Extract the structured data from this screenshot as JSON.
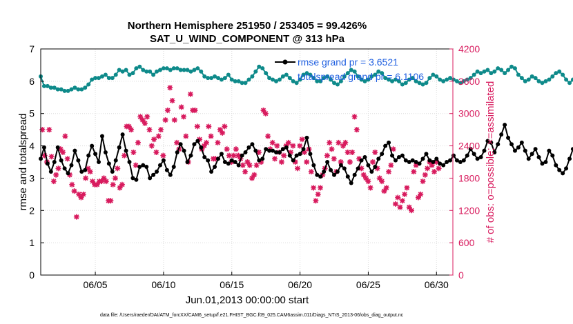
{
  "chart_data": {
    "type": "line",
    "title": "Northern Hemisphere 251950 / 253405 = 99.426%",
    "subtitle": "SAT_U_WIND_COMPONENT @ 313 hPa",
    "xlabel": "Jun.01,2013 00:00:00 start",
    "ylabel_left": "rmse and totalspread",
    "ylabel_right": "# of obs: o=possible; ×=assimilated",
    "footer": "data file: /Users/raeder/DAI/ATM_forcXX/CAM6_setup/f.e21.FHIST_BGC.f09_025.CAM6assim.011/Diags_NTrS_2013-06/obs_diag_output.nc",
    "xlim": [
      1,
      31.2
    ],
    "ylim_left": [
      0,
      7
    ],
    "ylim_right": [
      0,
      4200
    ],
    "xticks": [
      5,
      10,
      15,
      20,
      25,
      30
    ],
    "xtick_labels": [
      "06/05",
      "06/10",
      "06/15",
      "06/20",
      "06/25",
      "06/30"
    ],
    "yticks_left": [
      0,
      1,
      2,
      3,
      4,
      5,
      6,
      7
    ],
    "ytick_labels_left": [
      "0",
      "1",
      "2",
      "3",
      "4",
      "5",
      "6",
      "7"
    ],
    "yticks_right": [
      0,
      600,
      1200,
      1800,
      2400,
      3000,
      3600,
      4200
    ],
    "ytick_labels_right": [
      "0",
      "600",
      "1200",
      "1800",
      "2400",
      "3000",
      "3600",
      "4200"
    ],
    "legend": [
      "rmse grand pr = 3.6521",
      "totalspread grand pr = 6.1106"
    ],
    "colors": {
      "rmse": "#000000",
      "spread": "#0e8a8a",
      "obs": "#d81b5e",
      "right_axis": "#d81b5e",
      "legend_text": "#1f5fe0"
    },
    "start_day": 1.0,
    "step_days": 0.25,
    "series": [
      {
        "name": "rmse",
        "axis": "left",
        "values": [
          3.6,
          3.95,
          3.45,
          3.2,
          3.5,
          3.95,
          3.55,
          3.3,
          3.15,
          3.4,
          3.85,
          3.55,
          3.2,
          3.25,
          3.7,
          4.0,
          3.75,
          3.5,
          4.3,
          3.8,
          3.45,
          3.2,
          3.55,
          3.95,
          4.35,
          3.85,
          3.5,
          3.0,
          2.95,
          3.35,
          3.4,
          3.35,
          3.0,
          3.1,
          3.2,
          3.4,
          3.55,
          3.25,
          3.1,
          3.35,
          3.8,
          4.05,
          3.85,
          3.5,
          3.7,
          4.05,
          4.15,
          3.95,
          3.65,
          3.55,
          3.2,
          3.35,
          3.6,
          3.75,
          3.5,
          3.45,
          3.55,
          3.5,
          3.4,
          3.7,
          3.8,
          3.95,
          4.05,
          3.85,
          3.55,
          3.6,
          3.9,
          3.85,
          3.85,
          3.8,
          3.8,
          3.9,
          3.95,
          3.7,
          3.55,
          3.7,
          3.75,
          3.9,
          4.25,
          3.75,
          3.4,
          3.1,
          3.05,
          3.2,
          3.5,
          3.25,
          3.1,
          3.2,
          3.4,
          3.3,
          3.05,
          2.85,
          3.1,
          3.3,
          3.55,
          3.65,
          3.4,
          3.2,
          3.35,
          3.6,
          3.75,
          4.0,
          4.1,
          3.7,
          3.55,
          3.65,
          3.7,
          3.55,
          3.5,
          3.55,
          3.5,
          3.45,
          3.6,
          3.75,
          3.55,
          3.5,
          3.6,
          3.45,
          3.4,
          3.5,
          3.55,
          3.7,
          3.55,
          3.5,
          3.55,
          3.7,
          3.9,
          3.75,
          3.6,
          3.65,
          3.85,
          4.15,
          4.1,
          3.8,
          4.05,
          4.35,
          4.65,
          4.25,
          4.05,
          3.85,
          3.95,
          4.1,
          3.85,
          3.6,
          3.75,
          3.9,
          3.65,
          3.45,
          3.5,
          3.85,
          3.7,
          3.4,
          3.25,
          3.15,
          3.3,
          3.6,
          3.9,
          3.95,
          3.7,
          3.55,
          3.6,
          3.7,
          3.95,
          3.8,
          3.5,
          3.7,
          3.85,
          3.75,
          3.7,
          3.65,
          3.6,
          3.75,
          4.05,
          3.85,
          3.65,
          3.55,
          3.5,
          3.75,
          4.05,
          3.85,
          3.6,
          3.65,
          3.6,
          3.65,
          3.55,
          3.4,
          3.65,
          3.7,
          3.65,
          3.55,
          3.85,
          4.45,
          3.95,
          3.55,
          3.45,
          3.6,
          3.8,
          3.65,
          3.4,
          3.55,
          3.65,
          3.7,
          3.55,
          3.65,
          3.7,
          3.55,
          3.65,
          3.75,
          3.7,
          3.7,
          3.65,
          3.65,
          3.6,
          3.45,
          3.65,
          3.7,
          3.1,
          3.15
        ]
      },
      {
        "name": "totalspread",
        "axis": "left",
        "values": [
          6.15,
          5.85,
          5.85,
          5.8,
          5.8,
          5.75,
          5.75,
          5.7,
          5.7,
          5.75,
          5.8,
          5.75,
          5.75,
          5.8,
          5.9,
          6.05,
          6.1,
          6.1,
          6.15,
          6.2,
          6.1,
          6.1,
          6.2,
          6.35,
          6.3,
          6.35,
          6.2,
          6.25,
          6.4,
          6.45,
          6.35,
          6.3,
          6.3,
          6.2,
          6.3,
          6.35,
          6.4,
          6.4,
          6.35,
          6.4,
          6.4,
          6.35,
          6.35,
          6.35,
          6.3,
          6.35,
          6.4,
          6.3,
          6.15,
          6.1,
          6.1,
          6.15,
          6.1,
          6.05,
          6.1,
          6.2,
          6.05,
          6.0,
          6.0,
          5.95,
          5.95,
          6.05,
          6.15,
          6.3,
          6.45,
          6.4,
          6.25,
          6.1,
          6.05,
          6.0,
          6.05,
          6.15,
          6.2,
          6.1,
          6.0,
          5.95,
          6.05,
          6.2,
          6.25,
          6.2,
          6.1,
          6.0,
          6.0,
          6.1,
          6.15,
          6.05,
          5.95,
          5.9,
          6.0,
          6.15,
          6.25,
          6.35,
          6.3,
          6.15,
          6.05,
          6.0,
          6.05,
          6.15,
          6.2,
          6.3,
          6.25,
          6.1,
          6.05,
          6.0,
          6.05,
          6.0,
          5.9,
          5.95,
          6.05,
          6.1,
          6.0,
          5.95,
          5.9,
          5.95,
          6.1,
          6.2,
          6.15,
          6.05,
          6.0,
          6.05,
          6.1,
          6.05,
          6.0,
          5.95,
          6.0,
          6.05,
          6.1,
          6.2,
          6.3,
          6.25,
          6.3,
          6.35,
          6.25,
          6.3,
          6.4,
          6.35,
          6.25,
          6.35,
          6.45,
          6.4,
          6.2,
          6.1,
          6.0,
          6.05,
          6.15,
          6.1,
          6.0,
          5.95,
          6.0,
          6.05,
          6.15,
          6.25,
          6.3,
          6.2,
          6.05,
          5.95,
          6.05,
          6.1,
          6.05,
          5.95,
          6.0,
          6.05,
          6.15,
          6.2,
          6.15,
          6.0,
          5.95,
          6.0,
          6.05,
          6.1,
          6.1,
          6.05,
          6.1,
          6.2,
          6.25,
          6.35,
          6.4,
          6.45,
          6.4,
          6.35,
          6.45,
          6.5,
          6.35,
          6.2,
          6.1,
          6.05,
          6.15,
          6.2,
          6.25,
          6.2,
          6.1,
          6.0,
          6.1,
          6.15,
          6.25,
          6.2,
          6.1,
          6.0,
          6.05,
          6.1,
          6.2,
          6.3,
          6.35,
          6.25,
          6.15,
          6.1,
          6.0,
          5.9,
          6.05,
          6.15,
          6.2,
          6.1,
          6.05,
          6.0,
          6.0
        ]
      },
      {
        "name": "obs_possible",
        "axis": "right",
        "values": [
          2700,
          2220,
          2100,
          2700,
          2200,
          1740,
          1860,
          1980,
          2340,
          2280,
          2580,
          2160,
          1860,
          1680,
          1560,
          1080,
          1500,
          1440,
          1500,
          1800,
          1980,
          1920,
          1740,
          1680,
          1680,
          1740,
          1740,
          1800,
          1740,
          1380,
          1380,
          1680,
          1800,
          1980,
          1620,
          1680,
          2220,
          2760,
          2760,
          2700,
          2280,
          2040,
          2460,
          2940,
          2880,
          2820,
          2940,
          2700,
          2400,
          2520,
          2280,
          2580,
          2700,
          2220,
          2880,
          3060,
          3480,
          3240,
          2880,
          2460,
          2340,
          3120,
          2940,
          2580,
          2100,
          3360,
          3060,
          3060,
          2760,
          2520,
          2340,
          2400,
          2460,
          2760,
          2580,
          2160,
          2160,
          2460,
          2700,
          2640,
          2760,
          2340,
          2220,
          2100,
          2220,
          2340,
          2220,
          2160,
          2040,
          1920,
          2100,
          2040,
          1800,
          1860,
          2040,
          2280,
          2100,
          3060,
          3000,
          2580,
          2340,
          2460,
          2160,
          2400,
          2280,
          2100,
          2220,
          2400,
          2460,
          2280,
          2400,
          2100,
          1980,
          2400,
          2520,
          2280,
          2100,
          2340,
          1920,
          1620,
          1380,
          1500,
          1620,
          1860,
          1980,
          2220,
          2460,
          2340,
          2160,
          1920,
          2460,
          2100,
          2400,
          2460,
          2280,
          2100,
          2280,
          2940,
          2700,
          2160,
          1980,
          1860,
          1800,
          1740,
          1620,
          2100,
          2280,
          1980,
          1800,
          1740,
          1560,
          1620,
          1920,
          2040,
          2340,
          1320,
          1440,
          1260,
          1380,
          1500,
          1620,
          1260,
          1200,
          1920,
          2040,
          1440,
          1500,
          1740,
          1860,
          1980,
          2100,
          2040,
          1920,
          2100,
          1980
        ]
      }
    ]
  }
}
